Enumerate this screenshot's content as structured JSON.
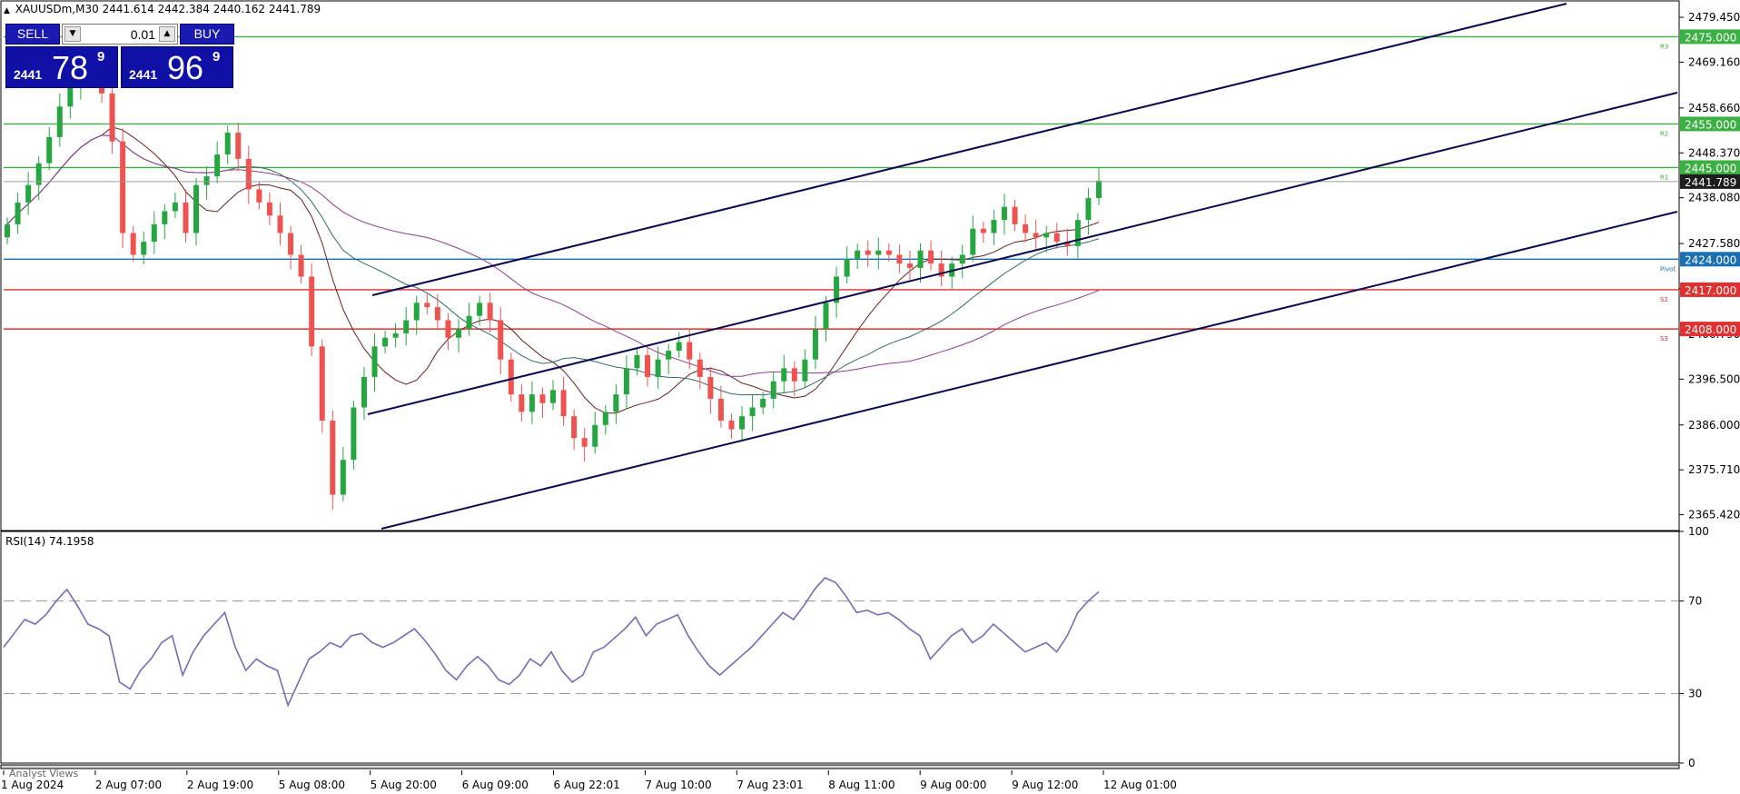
{
  "header": {
    "symbol": "XAUUSDm,M30",
    "open": "2441.614",
    "high": "2442.384",
    "low": "2440.162",
    "close": "2441.789"
  },
  "trade_panel": {
    "sell_label": "SELL",
    "buy_label": "BUY",
    "lot": "0.01",
    "sell_quote": {
      "small": "2441",
      "big": "78",
      "sup": "9"
    },
    "buy_quote": {
      "small": "2441",
      "big": "96",
      "sup": "9"
    },
    "sell_color": "#1010a6",
    "buy_color": "#1010a6"
  },
  "rsi_label": "RSI(14) 74.1958",
  "analyst_label": "Analyst Views",
  "colors": {
    "bull": "#26a641",
    "bear": "#ef5350",
    "resistance": "#3cb043",
    "support": "#e03030",
    "pivot": "#1a6fb0",
    "channel": "#0a0a50",
    "ma_fast": "#6b1d1d",
    "ma_mid": "#2f6b6b",
    "ma_slow": "#8e3c8e",
    "rsi": "#7b68b8"
  },
  "chart_data": [
    {
      "type": "candlestick",
      "symbol": "XAUUSDm",
      "timeframe": "M30",
      "ylim": [
        2362,
        2483
      ],
      "y_ticks": [
        "2479.450",
        "2469.160",
        "2458.660",
        "2448.370",
        "2438.080",
        "2427.580",
        "2417.290",
        "2406.790",
        "2396.500",
        "2386.000",
        "2375.710",
        "2365.420"
      ],
      "x_ticks": [
        "1 Aug 2024",
        "2 Aug 07:00",
        "2 Aug 19:00",
        "5 Aug 08:00",
        "5 Aug 20:00",
        "6 Aug 09:00",
        "6 Aug 22:01",
        "7 Aug 10:00",
        "7 Aug 23:01",
        "8 Aug 11:00",
        "9 Aug 00:00",
        "9 Aug 12:00",
        "12 Aug 01:00"
      ],
      "current_price": "2441.789",
      "closes": [
        2432,
        2437,
        2441,
        2446,
        2452,
        2459,
        2464,
        2466,
        2465,
        2462,
        2451,
        2430,
        2425,
        2428,
        2432,
        2435,
        2437,
        2430,
        2441,
        2443,
        2448,
        2453,
        2447,
        2440,
        2437,
        2434,
        2430,
        2425,
        2420,
        2404,
        2387,
        2370,
        2378,
        2390,
        2397,
        2404,
        2406,
        2407,
        2410,
        2414,
        2413,
        2410,
        2406,
        2408,
        2411,
        2414,
        2410,
        2401,
        2393,
        2389,
        2393,
        2391,
        2394,
        2388,
        2383,
        2381,
        2386,
        2389,
        2393,
        2399,
        2402,
        2397,
        2401,
        2403,
        2405,
        2401,
        2397,
        2392,
        2387,
        2385,
        2388,
        2390,
        2392,
        2396,
        2399,
        2396,
        2401,
        2408,
        2414,
        2420,
        2424,
        2426,
        2425,
        2426,
        2425,
        2423,
        2422,
        2426,
        2423,
        2420,
        2423,
        2425,
        2431,
        2430,
        2433,
        2436,
        2432,
        2430,
        2429,
        2430,
        2428,
        2427,
        2433,
        2438,
        2442
      ],
      "levels": [
        {
          "label": "R3",
          "value": 2475.0,
          "text": "2475.000",
          "kind": "resistance"
        },
        {
          "label": "R2",
          "value": 2455.0,
          "text": "2455.000",
          "kind": "resistance"
        },
        {
          "label": "R1",
          "value": 2445.0,
          "text": "2445.000",
          "kind": "resistance"
        },
        {
          "label": "Pivot",
          "value": 2424.0,
          "text": "2424.000",
          "kind": "pivot"
        },
        {
          "label": "S2",
          "value": 2417.0,
          "text": "2417.000",
          "kind": "support"
        },
        {
          "label": "S3",
          "value": 2408.0,
          "text": "2408.000",
          "kind": "support"
        }
      ]
    },
    {
      "type": "line",
      "indicator": "RSI(14)",
      "value": "74.1958",
      "ylim": [
        0,
        100
      ],
      "y_ticks": [
        "100",
        "70",
        "30",
        "0"
      ],
      "levels": [
        70,
        30
      ],
      "values": [
        50,
        56,
        62,
        60,
        64,
        70,
        75,
        68,
        60,
        58,
        55,
        35,
        32,
        40,
        45,
        52,
        55,
        38,
        48,
        55,
        60,
        65,
        50,
        40,
        45,
        42,
        40,
        25,
        35,
        45,
        48,
        52,
        50,
        55,
        56,
        52,
        50,
        52,
        55,
        58,
        53,
        47,
        40,
        36,
        42,
        46,
        42,
        36,
        34,
        38,
        45,
        42,
        48,
        40,
        35,
        38,
        48,
        50,
        54,
        58,
        63,
        55,
        60,
        62,
        64,
        55,
        48,
        42,
        38,
        42,
        46,
        50,
        55,
        60,
        65,
        62,
        68,
        75,
        80,
        78,
        72,
        65,
        66,
        64,
        65,
        62,
        58,
        55,
        45,
        50,
        55,
        58,
        52,
        55,
        60,
        56,
        52,
        48,
        50,
        52,
        48,
        55,
        65,
        70,
        74
      ]
    }
  ]
}
